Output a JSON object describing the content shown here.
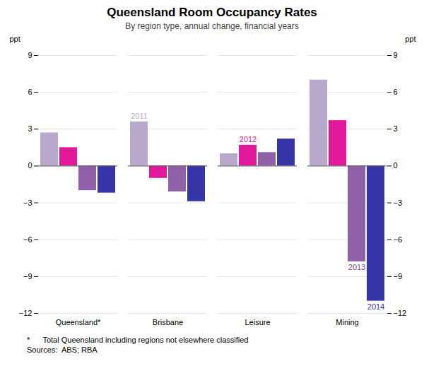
{
  "chart_data": {
    "type": "bar",
    "title": "Queensland Room Occupancy Rates",
    "subtitle": "By region type, annual change, financial years",
    "categories": [
      "Queensland*",
      "Brisbane",
      "Leisure",
      "Mining"
    ],
    "series": [
      {
        "name": "2011",
        "color": "#b8a8cc",
        "values": [
          2.7,
          3.6,
          1.0,
          7.0
        ]
      },
      {
        "name": "2012",
        "color": "#e0199a",
        "values": [
          1.5,
          -1.0,
          1.7,
          3.7
        ]
      },
      {
        "name": "2013",
        "color": "#9060a8",
        "values": [
          -2.0,
          -2.1,
          1.1,
          -7.8
        ]
      },
      {
        "name": "2014",
        "color": "#3535a8",
        "values": [
          -2.2,
          -2.9,
          2.2,
          -11.0
        ]
      }
    ],
    "ylabel": "ppt",
    "y2label": "ppt",
    "ylim": [
      -12,
      9
    ],
    "yticks": [
      -12,
      -9,
      -6,
      -3,
      0,
      3,
      6,
      9
    ],
    "y2lim": [
      -12,
      9
    ],
    "y2ticks": [
      -12,
      -9,
      -6,
      -3,
      0,
      3,
      6,
      9
    ],
    "grid": true,
    "annotations": [
      {
        "text": "2011",
        "category": "Brisbane",
        "series": "2011",
        "color": "#b8a8cc"
      },
      {
        "text": "2012",
        "category": "Leisure",
        "series": "2012",
        "color": "#e0199a"
      },
      {
        "text": "2013",
        "category": "Mining",
        "series": "2013",
        "color": "#7050a0"
      },
      {
        "text": "2014",
        "category": "Mining",
        "series": "2014",
        "color": "#3535a8"
      }
    ],
    "footnotes": [
      "*      Total Queensland including regions not elsewhere classified",
      "Sources:  ABS; RBA"
    ]
  }
}
